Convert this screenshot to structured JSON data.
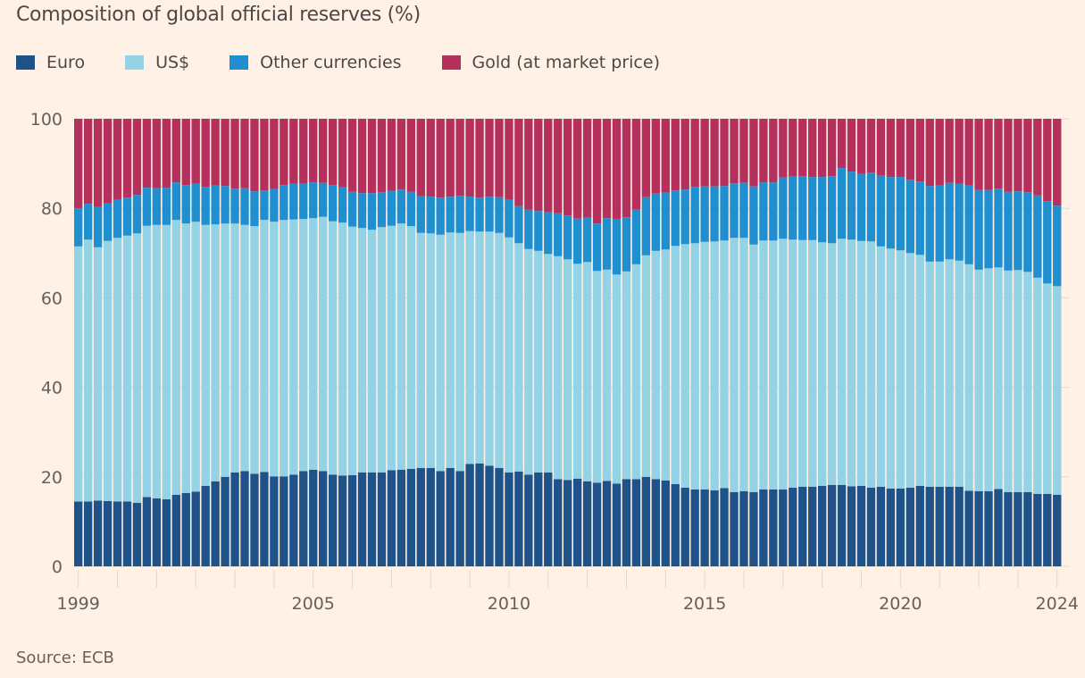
{
  "title": "Composition of global official reserves (%)",
  "source": "Source: ECB",
  "legend": [
    {
      "label": "Euro",
      "color": "#1f5289"
    },
    {
      "label": "US$",
      "color": "#94d2e6"
    },
    {
      "label": "Other currencies",
      "color": "#208fcf"
    },
    {
      "label": "Gold (at market price)",
      "color": "#b5305d"
    }
  ],
  "chart_data": {
    "type": "bar",
    "stacked": true,
    "title": "Composition of global official reserves (%)",
    "xlabel": "",
    "ylabel": "",
    "ylim": [
      0,
      100
    ],
    "yticks": [
      0,
      20,
      40,
      60,
      80,
      100
    ],
    "xtick_labels": [
      "1999",
      "2005",
      "2010",
      "2015",
      "2020",
      "2024"
    ],
    "grid": true,
    "legend_position": "top-left",
    "frequency": "quarterly",
    "start": "1999Q1",
    "end": "2024Q1",
    "categories": [
      "1999Q1",
      "1999Q2",
      "1999Q3",
      "1999Q4",
      "2000Q1",
      "2000Q2",
      "2000Q3",
      "2000Q4",
      "2001Q1",
      "2001Q2",
      "2001Q3",
      "2001Q4",
      "2002Q1",
      "2002Q2",
      "2002Q3",
      "2002Q4",
      "2003Q1",
      "2003Q2",
      "2003Q3",
      "2003Q4",
      "2004Q1",
      "2004Q2",
      "2004Q3",
      "2004Q4",
      "2005Q1",
      "2005Q2",
      "2005Q3",
      "2005Q4",
      "2006Q1",
      "2006Q2",
      "2006Q3",
      "2006Q4",
      "2007Q1",
      "2007Q2",
      "2007Q3",
      "2007Q4",
      "2008Q1",
      "2008Q2",
      "2008Q3",
      "2008Q4",
      "2009Q1",
      "2009Q2",
      "2009Q3",
      "2009Q4",
      "2010Q1",
      "2010Q2",
      "2010Q3",
      "2010Q4",
      "2011Q1",
      "2011Q2",
      "2011Q3",
      "2011Q4",
      "2012Q1",
      "2012Q2",
      "2012Q3",
      "2012Q4",
      "2013Q1",
      "2013Q2",
      "2013Q3",
      "2013Q4",
      "2014Q1",
      "2014Q2",
      "2014Q3",
      "2014Q4",
      "2015Q1",
      "2015Q2",
      "2015Q3",
      "2015Q4",
      "2016Q1",
      "2016Q2",
      "2016Q3",
      "2016Q4",
      "2017Q1",
      "2017Q2",
      "2017Q3",
      "2017Q4",
      "2018Q1",
      "2018Q2",
      "2018Q3",
      "2018Q4",
      "2019Q1",
      "2019Q2",
      "2019Q3",
      "2019Q4",
      "2020Q1",
      "2020Q2",
      "2020Q3",
      "2020Q4",
      "2021Q1",
      "2021Q2",
      "2021Q3",
      "2021Q4",
      "2022Q1",
      "2022Q2",
      "2022Q3",
      "2022Q4",
      "2023Q1",
      "2023Q2",
      "2023Q3",
      "2023Q4",
      "2024Q1"
    ],
    "series": [
      {
        "name": "Euro",
        "color": "#1f5289",
        "values": [
          14.5,
          14.5,
          14.7,
          14.6,
          14.5,
          14.5,
          14.2,
          15.5,
          15.2,
          15.0,
          16.0,
          16.4,
          16.7,
          18.0,
          19.0,
          20.0,
          21.0,
          21.3,
          20.7,
          21.1,
          20.1,
          20.1,
          20.5,
          21.3,
          21.6,
          21.3,
          20.5,
          20.3,
          20.4,
          21.0,
          21.0,
          21.0,
          21.5,
          21.6,
          21.8,
          22.0,
          22.0,
          21.3,
          22.0,
          21.3,
          22.9,
          23.0,
          22.5,
          22.0,
          21.0,
          21.2,
          20.5,
          21.0,
          21.0,
          19.5,
          19.3,
          19.6,
          19.0,
          18.7,
          19.1,
          18.5,
          19.5,
          19.5,
          20.0,
          19.5,
          19.2,
          18.4,
          17.6,
          17.2,
          17.2,
          17.0,
          17.5,
          16.6,
          16.8,
          16.6,
          17.2,
          17.2,
          17.2,
          17.6,
          17.8,
          17.8,
          18.0,
          18.2,
          18.2,
          17.9,
          18.0,
          17.6,
          17.8,
          17.4,
          17.4,
          17.6,
          18.0,
          17.8,
          17.8,
          17.8,
          17.8,
          16.9,
          16.8,
          16.8,
          17.3,
          16.6,
          16.6,
          16.6,
          16.2,
          16.2,
          16.0
        ]
      },
      {
        "name": "US$",
        "color": "#94d2e6",
        "values": [
          57.0,
          58.5,
          56.6,
          58.1,
          58.9,
          59.4,
          60.2,
          60.6,
          61.1,
          61.3,
          61.4,
          60.2,
          60.3,
          58.3,
          57.4,
          56.6,
          55.6,
          55.0,
          55.3,
          56.3,
          56.9,
          57.3,
          57.0,
          56.3,
          56.2,
          56.8,
          56.6,
          56.5,
          55.5,
          54.6,
          54.2,
          54.8,
          54.6,
          55.0,
          54.2,
          52.5,
          52.4,
          52.8,
          52.6,
          53.2,
          52.0,
          51.8,
          52.3,
          52.5,
          52.5,
          51.0,
          50.4,
          49.5,
          48.8,
          49.8,
          49.3,
          48.0,
          49.0,
          47.3,
          47.2,
          46.7,
          46.4,
          48.0,
          49.5,
          51.0,
          51.6,
          53.2,
          54.4,
          55.0,
          55.3,
          55.6,
          55.3,
          56.8,
          56.6,
          55.3,
          55.6,
          55.6,
          56.0,
          55.4,
          55.1,
          55.1,
          54.4,
          54.0,
          55.0,
          55.1,
          54.7,
          55.0,
          53.7,
          53.6,
          53.2,
          52.4,
          51.6,
          50.3,
          50.3,
          50.8,
          50.5,
          50.6,
          49.5,
          49.8,
          49.5,
          49.5,
          49.6,
          49.2,
          48.3,
          47.0,
          46.6
        ]
      },
      {
        "name": "Other currencies",
        "color": "#208fcf",
        "values": [
          8.5,
          8.0,
          9.0,
          8.4,
          8.5,
          8.5,
          8.6,
          8.5,
          8.2,
          8.3,
          8.4,
          8.6,
          8.5,
          8.5,
          8.7,
          8.4,
          7.8,
          8.2,
          7.8,
          6.6,
          7.3,
          7.8,
          8.0,
          7.9,
          8.0,
          7.6,
          8.1,
          7.9,
          7.8,
          7.8,
          8.2,
          7.8,
          7.8,
          7.6,
          7.7,
          8.2,
          8.2,
          8.3,
          8.0,
          8.3,
          7.7,
          7.6,
          7.8,
          8.0,
          8.4,
          8.3,
          8.8,
          8.9,
          9.3,
          9.6,
          9.8,
          10.1,
          9.9,
          10.6,
          11.5,
          12.3,
          12.1,
          12.2,
          13.0,
          12.8,
          12.7,
          12.4,
          12.2,
          12.6,
          12.4,
          12.3,
          12.2,
          12.2,
          12.3,
          13.0,
          13.0,
          13.0,
          13.7,
          14.1,
          14.3,
          14.1,
          14.6,
          15.0,
          15.8,
          15.2,
          15.0,
          15.4,
          15.8,
          16.0,
          16.4,
          16.4,
          16.4,
          16.9,
          17.0,
          17.1,
          17.2,
          17.6,
          17.8,
          17.5,
          17.6,
          17.6,
          17.6,
          17.8,
          18.4,
          18.4,
          18.0
        ]
      },
      {
        "name": "Gold (at market price)",
        "color": "#b5305d",
        "values": [
          20.0,
          19.0,
          19.7,
          18.9,
          18.1,
          17.6,
          17.0,
          15.4,
          15.5,
          15.4,
          14.2,
          14.8,
          14.5,
          15.2,
          14.9,
          15.0,
          15.6,
          15.5,
          16.2,
          16.0,
          15.7,
          14.8,
          14.5,
          14.5,
          14.2,
          14.3,
          14.8,
          15.3,
          16.3,
          16.6,
          16.6,
          16.4,
          16.1,
          15.8,
          16.3,
          17.3,
          17.4,
          17.6,
          17.4,
          17.2,
          17.4,
          17.6,
          17.4,
          17.5,
          18.1,
          19.5,
          20.3,
          20.6,
          20.9,
          21.1,
          21.6,
          22.3,
          22.1,
          23.4,
          22.2,
          22.5,
          22.0,
          20.3,
          17.5,
          16.7,
          16.5,
          16.0,
          15.8,
          15.2,
          15.1,
          15.1,
          15.0,
          14.4,
          14.3,
          15.1,
          14.2,
          14.2,
          13.1,
          12.9,
          12.8,
          13.0,
          13.0,
          12.8,
          12.0,
          11.8,
          12.3,
          12.0,
          12.7,
          13.0,
          13.0,
          13.6,
          14.0,
          15.0,
          14.9,
          14.3,
          14.5,
          14.9,
          15.9,
          15.9,
          15.6,
          16.3,
          16.2,
          16.4,
          17.1,
          18.4,
          19.4
        ]
      }
    ]
  }
}
